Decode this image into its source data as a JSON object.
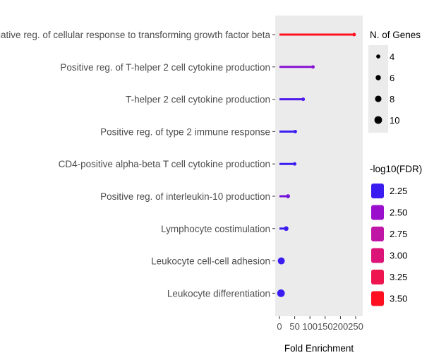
{
  "chart_data": {
    "type": "lollipop",
    "xlabel": "Fold Enrichment",
    "ylabel": "",
    "xlim": [
      0,
      250
    ],
    "x_ticks": [
      0,
      50,
      100,
      150,
      200,
      250
    ],
    "grid": false,
    "legend_position": "right",
    "categories": [
      "Negative reg. of cellular response to transforming growth factor beta",
      "Positive reg. of T-helper 2 cell cytokine production",
      "T-helper 2 cell cytokine production",
      "Positive reg. of type 2 immune response",
      "CD4-positive alpha-beta T cell cytokine production",
      "Positive reg. of interleukin-10 production",
      "Lymphocyte costimulation",
      "Leukocyte cell-cell adhesion",
      "Leukocyte differentiation"
    ],
    "values": [
      245,
      110,
      78,
      52,
      50,
      28,
      22,
      6,
      5
    ],
    "n_genes": [
      3,
      3,
      3,
      3,
      3,
      4,
      5,
      9,
      10
    ],
    "neg_log10_fdr": [
      3.55,
      2.45,
      2.3,
      2.2,
      2.2,
      2.4,
      2.25,
      2.15,
      2.2
    ],
    "size_legend": {
      "title": "N. of Genes",
      "labels": [
        "4",
        "6",
        "8",
        "10"
      ]
    },
    "color_legend": {
      "title": "-log10(FDR)",
      "labels": [
        "2.25",
        "2.50",
        "2.75",
        "3.00",
        "3.25",
        "3.50"
      ],
      "colors": [
        "#3b1cf0",
        "#9a0fcc",
        "#c016a6",
        "#dd1478",
        "#ee1450",
        "#ff1020"
      ]
    }
  }
}
